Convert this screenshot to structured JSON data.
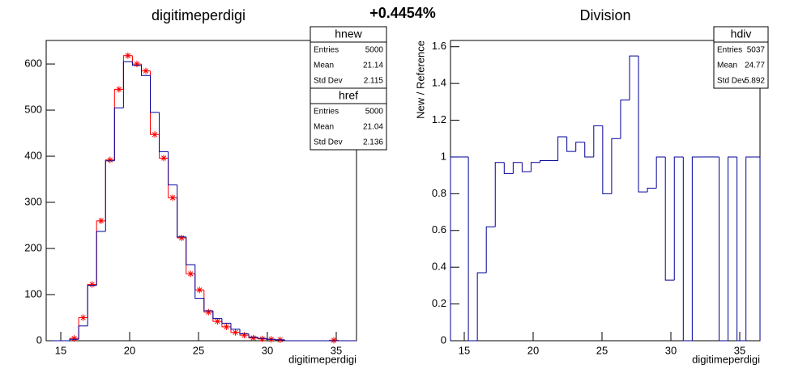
{
  "header": "+0.4454%",
  "chart_data": [
    {
      "type": "histogram",
      "title": "digitimeperdigi",
      "x_label": "digitimeperdigi",
      "bins": [
        14.35,
        15,
        15.65,
        16.3,
        16.95,
        17.6,
        18.25,
        18.9,
        19.55,
        20.2,
        20.85,
        21.5,
        22.15,
        22.8,
        23.45,
        24.1,
        24.75,
        25.4,
        26.05,
        26.7,
        27.35,
        28,
        28.65,
        29.3,
        29.95,
        30.6,
        31.25,
        31.9,
        32.55,
        33.2,
        33.85,
        34.5,
        35.15,
        35.8,
        36.45
      ],
      "series": [
        {
          "name": "hnew",
          "color": "#000099",
          "values": [
            0,
            0,
            3,
            32,
            120,
            237,
            390,
            505,
            605,
            597,
            575,
            495,
            410,
            338,
            225,
            165,
            92,
            65,
            48,
            38,
            25,
            15,
            8,
            5,
            3,
            2,
            0,
            0,
            0,
            0,
            0,
            0,
            0,
            0
          ],
          "stats": [
            {
              "label": "Entries",
              "value": 5000
            },
            {
              "label": "Mean",
              "value": 21.14
            },
            {
              "label": "Std Dev",
              "value": 2.115
            }
          ]
        },
        {
          "name": "href",
          "color": "#ff0000",
          "marker": "star",
          "values": [
            0,
            0,
            5,
            50,
            122,
            260,
            392,
            545,
            618,
            600,
            585,
            447,
            396,
            310,
            223,
            145,
            110,
            62,
            42,
            30,
            18,
            12,
            6,
            4,
            3,
            2,
            0,
            0,
            0,
            0,
            0,
            1,
            0,
            0
          ],
          "stats": [
            {
              "label": "Entries",
              "value": 5000
            },
            {
              "label": "Mean",
              "value": 21.04
            },
            {
              "label": "Std Dev",
              "value": 2.136
            }
          ]
        }
      ],
      "xlim": [
        13.94,
        36.47
      ],
      "xticks": [
        15,
        20,
        25,
        30,
        35
      ],
      "ylim": [
        0,
        651
      ],
      "yticks": [
        0,
        100,
        200,
        300,
        400,
        500,
        600
      ]
    },
    {
      "type": "histogram",
      "title": "Division",
      "x_label": "digitimeperdigi",
      "y_label": "New / Reference",
      "bins": [
        14,
        14.65,
        15.3,
        15.95,
        16.6,
        17.25,
        17.9,
        18.55,
        19.2,
        19.85,
        20.5,
        21.15,
        21.8,
        22.45,
        23.1,
        23.75,
        24.4,
        25.05,
        25.7,
        26.35,
        27,
        27.65,
        28.3,
        28.95,
        29.6,
        30.25,
        30.9,
        31.55,
        32.2,
        32.85,
        33.5,
        34.15,
        34.8,
        35.45,
        36.1,
        36.47
      ],
      "series": [
        {
          "name": "hdiv",
          "color": "#000099",
          "values": [
            1,
            1,
            0,
            0.37,
            0.62,
            0.97,
            0.91,
            0.97,
            0.92,
            0.97,
            0.98,
            0.98,
            1.11,
            1.03,
            1.08,
            1,
            1.17,
            0.8,
            1.1,
            1.31,
            1.55,
            0.81,
            0.83,
            1,
            0.33,
            1,
            0,
            1,
            1,
            1,
            0,
            1,
            0,
            1,
            1
          ],
          "stats": [
            {
              "label": "Entries",
              "value": 5037
            },
            {
              "label": "Mean",
              "value": 24.77
            },
            {
              "label": "Std Dev",
              "value": 5.892
            }
          ]
        }
      ],
      "xlim": [
        14,
        36.47
      ],
      "xticks": [
        15,
        20,
        25,
        30,
        35
      ],
      "ylim": [
        0,
        1.634
      ],
      "yticks": [
        0,
        0.2,
        0.4,
        0.6,
        0.8,
        1,
        1.2,
        1.4,
        1.6
      ]
    }
  ]
}
